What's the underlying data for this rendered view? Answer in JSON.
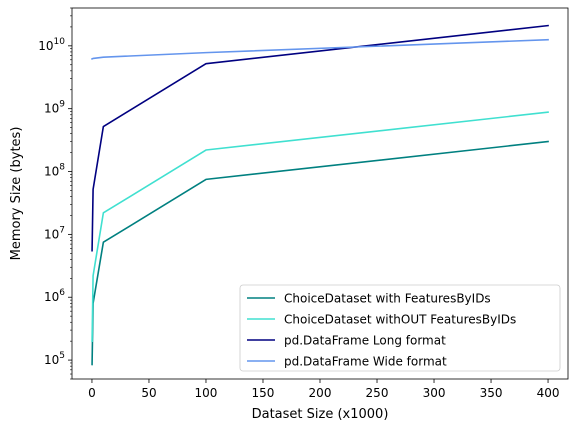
{
  "chart_data": {
    "type": "line",
    "title": "",
    "xlabel": "Dataset Size (x1000)",
    "ylabel": "Memory Size (bytes)",
    "xlim": [
      -17.5,
      417.5
    ],
    "ylim": [
      50000,
      40000000000
    ],
    "yscale": "log",
    "grid": false,
    "legend_position": "lower-right",
    "x_ticks": [
      0,
      50,
      100,
      150,
      200,
      250,
      300,
      350,
      400
    ],
    "y_ticks": [
      {
        "exp": 5,
        "label_base": "10",
        "label_exp": "5"
      },
      {
        "exp": 6,
        "label_base": "10",
        "label_exp": "6"
      },
      {
        "exp": 7,
        "label_base": "10",
        "label_exp": "7"
      },
      {
        "exp": 8,
        "label_base": "10",
        "label_exp": "8"
      },
      {
        "exp": 9,
        "label_base": "10",
        "label_exp": "9"
      },
      {
        "exp": 10,
        "label_base": "10",
        "label_exp": "10"
      }
    ],
    "series": [
      {
        "name": "ChoiceDataset with FeaturesByIDs",
        "color": "#008080",
        "x": [
          0.1,
          1,
          10,
          100,
          400
        ],
        "y": [
          85000,
          800000,
          7500000,
          75000000,
          300000000
        ]
      },
      {
        "name": "ChoiceDataset withOUT FeaturesByIDs",
        "color": "#40e0d0",
        "x": [
          0.1,
          1,
          10,
          100,
          400
        ],
        "y": [
          200000,
          2200000,
          22000000,
          220000000,
          880000000
        ]
      },
      {
        "name": "pd.DataFrame Long format",
        "color": "#000080",
        "x": [
          0.1,
          1,
          10,
          100,
          400
        ],
        "y": [
          5500000,
          52000000,
          520000000,
          5200000000,
          21000000000
        ]
      },
      {
        "name": "pd.DataFrame Wide format",
        "color": "#6495ed",
        "x": [
          0.1,
          1,
          10,
          100,
          400
        ],
        "y": [
          6200000000,
          6300000000,
          6600000000,
          7800000000,
          12500000000
        ]
      }
    ]
  }
}
